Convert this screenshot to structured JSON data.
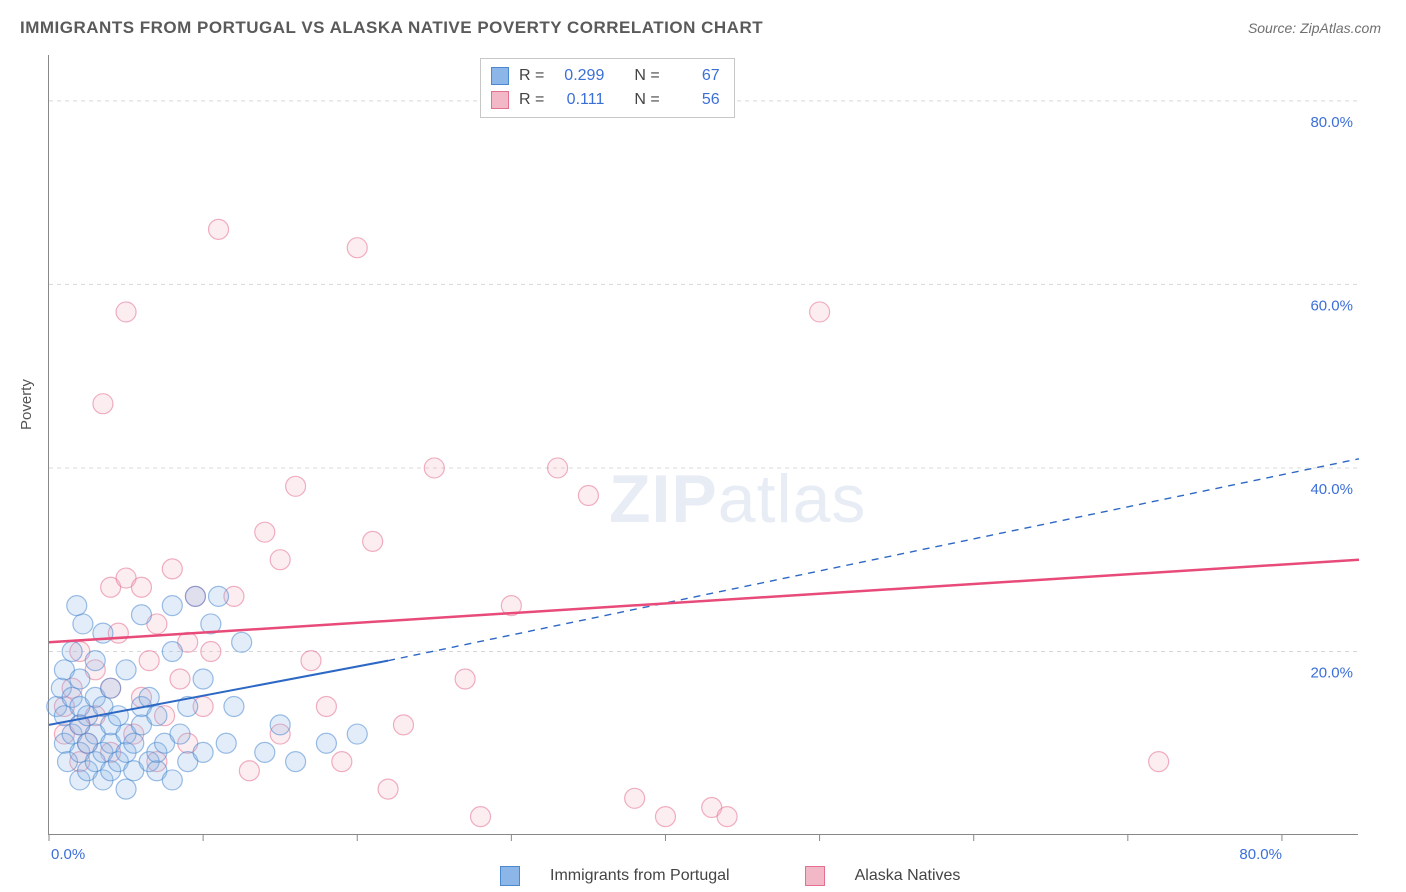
{
  "title": "IMMIGRANTS FROM PORTUGAL VS ALASKA NATIVE POVERTY CORRELATION CHART",
  "source": "Source: ZipAtlas.com",
  "ylabel": "Poverty",
  "watermark": {
    "bold": "ZIP",
    "rest": "atlas"
  },
  "chart": {
    "type": "scatter",
    "background_color": "#ffffff",
    "grid_color": "#d8d8d8",
    "axis_color": "#888888",
    "label_color": "#3b6fd8",
    "text_color": "#555555",
    "marker_radius": 10,
    "xlim": [
      0,
      85
    ],
    "ylim": [
      0,
      85
    ],
    "x_ticks": [
      0,
      10,
      20,
      30,
      40,
      50,
      60,
      70,
      80
    ],
    "y_gridlines": [
      20,
      40,
      60,
      80
    ],
    "x_axis_labels": [
      {
        "value": 0,
        "text": "0.0%"
      },
      {
        "value": 80,
        "text": "80.0%"
      }
    ],
    "y_axis_labels": [
      {
        "value": 20,
        "text": "20.0%"
      },
      {
        "value": 40,
        "text": "40.0%"
      },
      {
        "value": 60,
        "text": "60.0%"
      },
      {
        "value": 80,
        "text": "80.0%"
      }
    ],
    "series": [
      {
        "id": "portugal",
        "label": "Immigrants from Portugal",
        "fill": "#8db6e8",
        "stroke": "#4a88d0",
        "r": 0.299,
        "n": 67,
        "trend": {
          "x1": 0,
          "y1": 12,
          "x2": 22,
          "y2": 19,
          "dash_to_x": 85,
          "dash_to_y": 41,
          "color": "#2d68c4",
          "width": 2
        },
        "points": [
          [
            0.5,
            14
          ],
          [
            0.8,
            16
          ],
          [
            1,
            10
          ],
          [
            1,
            13
          ],
          [
            1,
            18
          ],
          [
            1.2,
            8
          ],
          [
            1.5,
            11
          ],
          [
            1.5,
            15
          ],
          [
            1.5,
            20
          ],
          [
            1.8,
            25
          ],
          [
            2,
            6
          ],
          [
            2,
            9
          ],
          [
            2,
            12
          ],
          [
            2,
            14
          ],
          [
            2,
            17
          ],
          [
            2.2,
            23
          ],
          [
            2.5,
            7
          ],
          [
            2.5,
            10
          ],
          [
            2.5,
            13
          ],
          [
            3,
            8
          ],
          [
            3,
            11
          ],
          [
            3,
            15
          ],
          [
            3,
            19
          ],
          [
            3.5,
            6
          ],
          [
            3.5,
            9
          ],
          [
            3.5,
            14
          ],
          [
            3.5,
            22
          ],
          [
            4,
            7
          ],
          [
            4,
            10
          ],
          [
            4,
            12
          ],
          [
            4,
            16
          ],
          [
            4.5,
            8
          ],
          [
            4.5,
            13
          ],
          [
            5,
            5
          ],
          [
            5,
            9
          ],
          [
            5,
            11
          ],
          [
            5,
            18
          ],
          [
            5.5,
            7
          ],
          [
            5.5,
            10
          ],
          [
            6,
            12
          ],
          [
            6,
            14
          ],
          [
            6,
            24
          ],
          [
            6.5,
            8
          ],
          [
            6.5,
            15
          ],
          [
            7,
            7
          ],
          [
            7,
            9
          ],
          [
            7,
            13
          ],
          [
            7.5,
            10
          ],
          [
            8,
            6
          ],
          [
            8,
            20
          ],
          [
            8,
            25
          ],
          [
            8.5,
            11
          ],
          [
            9,
            8
          ],
          [
            9,
            14
          ],
          [
            9.5,
            26
          ],
          [
            10,
            9
          ],
          [
            10,
            17
          ],
          [
            10.5,
            23
          ],
          [
            11,
            26
          ],
          [
            11.5,
            10
          ],
          [
            12,
            14
          ],
          [
            12.5,
            21
          ],
          [
            14,
            9
          ],
          [
            15,
            12
          ],
          [
            16,
            8
          ],
          [
            18,
            10
          ],
          [
            20,
            11
          ]
        ]
      },
      {
        "id": "alaska",
        "label": "Alaska Natives",
        "fill": "#f3b8c8",
        "stroke": "#e4708f",
        "r": 0.111,
        "n": 56,
        "trend": {
          "x1": 0,
          "y1": 21,
          "x2": 85,
          "y2": 30,
          "color": "#e84b7a",
          "width": 2.5
        },
        "points": [
          [
            1,
            11
          ],
          [
            1,
            14
          ],
          [
            1.5,
            16
          ],
          [
            2,
            8
          ],
          [
            2,
            12
          ],
          [
            2,
            20
          ],
          [
            2.5,
            10
          ],
          [
            3,
            13
          ],
          [
            3,
            18
          ],
          [
            3.5,
            47
          ],
          [
            4,
            9
          ],
          [
            4,
            16
          ],
          [
            4,
            27
          ],
          [
            4.5,
            22
          ],
          [
            5,
            57
          ],
          [
            5,
            28
          ],
          [
            5.5,
            11
          ],
          [
            6,
            15
          ],
          [
            6,
            27
          ],
          [
            6.5,
            19
          ],
          [
            7,
            8
          ],
          [
            7,
            23
          ],
          [
            7.5,
            13
          ],
          [
            8,
            29
          ],
          [
            8.5,
            17
          ],
          [
            9,
            10
          ],
          [
            9,
            21
          ],
          [
            9.5,
            26
          ],
          [
            10,
            14
          ],
          [
            10.5,
            20
          ],
          [
            11,
            66
          ],
          [
            12,
            26
          ],
          [
            13,
            7
          ],
          [
            14,
            33
          ],
          [
            15,
            11
          ],
          [
            15,
            30
          ],
          [
            16,
            38
          ],
          [
            17,
            19
          ],
          [
            18,
            14
          ],
          [
            19,
            8
          ],
          [
            20,
            64
          ],
          [
            21,
            32
          ],
          [
            22,
            5
          ],
          [
            23,
            12
          ],
          [
            25,
            40
          ],
          [
            27,
            17
          ],
          [
            28,
            2
          ],
          [
            30,
            25
          ],
          [
            33,
            40
          ],
          [
            35,
            37
          ],
          [
            38,
            4
          ],
          [
            40,
            2
          ],
          [
            43,
            3
          ],
          [
            44,
            2
          ],
          [
            50,
            57
          ],
          [
            72,
            8
          ]
        ]
      }
    ]
  },
  "stats_box": {
    "r_label": "R =",
    "n_label": "N ="
  }
}
